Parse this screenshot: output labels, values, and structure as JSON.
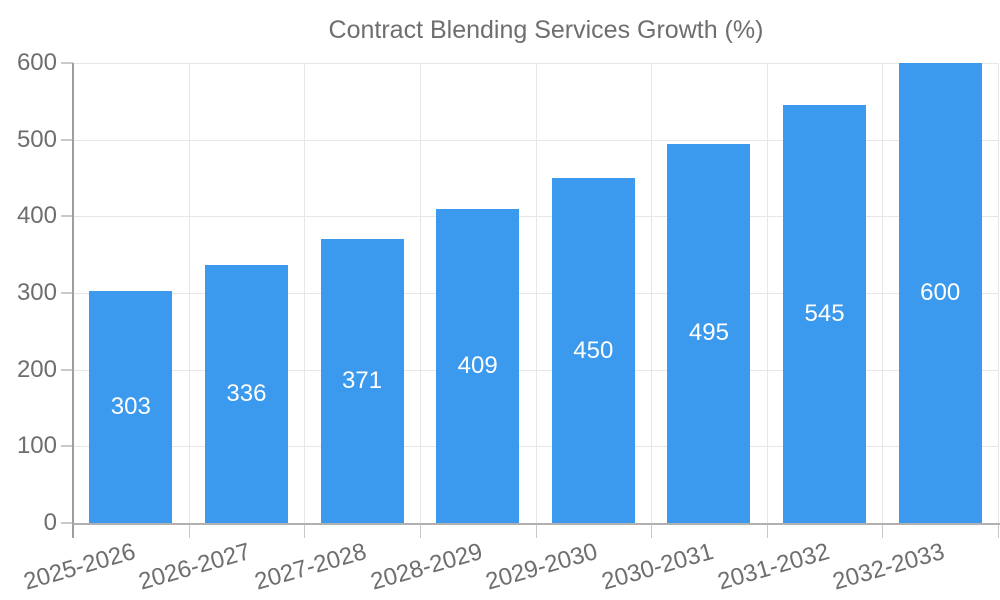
{
  "legend": {
    "label": "Contract Blending Services Growth (%)",
    "swatch_color": "#3b99ee",
    "position": "top"
  },
  "chart_data": {
    "type": "bar",
    "title": "Contract Blending Services Growth (%)",
    "categories": [
      "2025-2026",
      "2026-2027",
      "2027-2028",
      "2028-2029",
      "2029-2030",
      "2030-2031",
      "2031-2032",
      "2032-2033"
    ],
    "values": [
      303,
      336,
      371,
      409,
      450,
      495,
      545,
      600
    ],
    "series_name": "Contract Blending Services Growth (%)",
    "xlabel": "",
    "ylabel": "",
    "ylim": [
      0,
      600
    ],
    "yticks": [
      0,
      100,
      200,
      300,
      400,
      500,
      600
    ],
    "grid": true,
    "value_labels_shown": true,
    "legend_position": "top",
    "colors": {
      "bar": "#3b99ee",
      "value_label": "#ffffff",
      "tick_text": "#6e6e6e",
      "gridline": "#e7e7e7",
      "axis": "#9e9e9e"
    }
  }
}
